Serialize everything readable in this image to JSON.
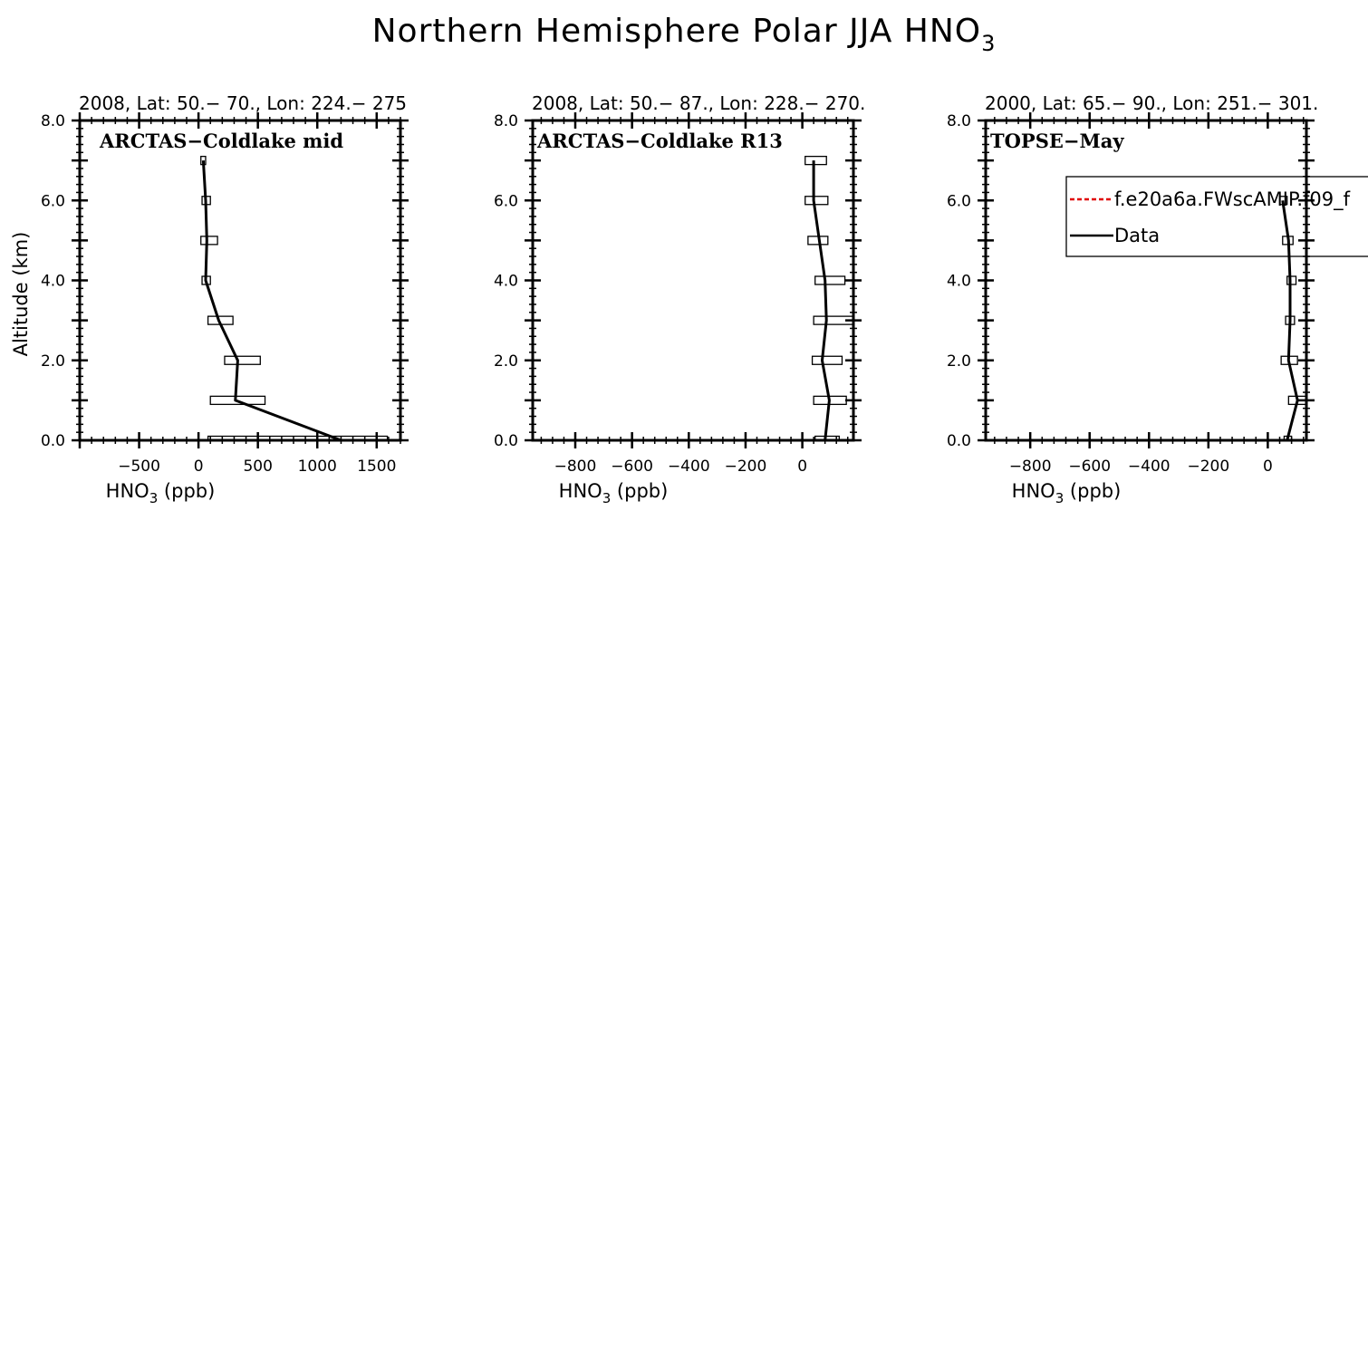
{
  "figure": {
    "title_main": "Northern Hemisphere Polar JJA HNO",
    "title_sub": "3"
  },
  "colors": {
    "model": "#e00000",
    "data": "#000000"
  },
  "chart_data": [
    {
      "type": "line",
      "panel_label": "ARCTAS−Coldlake mid",
      "header": "2008, Lat:  50.− 70., Lon: 224.− 275",
      "xlabel_main": "HNO",
      "xlabel_sub": "3",
      "xlabel_unit": " (ppb)",
      "ylabel": "Altitude (km)",
      "xlim": [
        -1000,
        1700
      ],
      "ylim": [
        0,
        8
      ],
      "xticks": [
        -500,
        0,
        500,
        1000,
        1500
      ],
      "xticklabels": [
        "−500",
        "0",
        "500",
        "1000",
        "1500"
      ],
      "yticks": [
        0,
        2,
        4,
        6,
        8
      ],
      "yticklabels": [
        "0.0",
        "2.0",
        "4.0",
        "6.0",
        "8.0"
      ],
      "series": [
        {
          "name": "Data",
          "y": [
            0,
            1,
            2,
            3,
            4,
            5,
            6,
            7
          ],
          "values": [
            1200,
            310,
            330,
            170,
            60,
            70,
            60,
            40
          ],
          "ranges": [
            [
              80,
              1590
            ],
            [
              100,
              560
            ],
            [
              220,
              520
            ],
            [
              80,
              290
            ],
            [
              30,
              100
            ],
            [
              20,
              160
            ],
            [
              30,
              100
            ],
            [
              20,
              60
            ]
          ]
        }
      ]
    },
    {
      "type": "line",
      "panel_label": "ARCTAS−Coldlake R13",
      "header": "2008, Lat:  50.− 87., Lon: 228.− 270.",
      "xlabel_main": "HNO",
      "xlabel_sub": "3",
      "xlabel_unit": " (ppb)",
      "ylabel": "",
      "xlim": [
        -950,
        180
      ],
      "ylim": [
        0,
        8
      ],
      "xticks": [
        -800,
        -600,
        -400,
        -200,
        0
      ],
      "xticklabels": [
        "−800",
        "−600",
        "−400",
        "−200",
        "0"
      ],
      "yticks": [
        0,
        2,
        4,
        6,
        8
      ],
      "yticklabels": [
        "0.0",
        "2.0",
        "4.0",
        "6.0",
        "8.0"
      ],
      "series": [
        {
          "name": "Data",
          "y": [
            0,
            1,
            2,
            3,
            4,
            5,
            6,
            7
          ],
          "values": [
            80,
            95,
            70,
            85,
            80,
            60,
            40,
            40
          ],
          "ranges": [
            [
              45,
              130
            ],
            [
              40,
              155
            ],
            [
              35,
              140
            ],
            [
              40,
              180
            ],
            [
              45,
              150
            ],
            [
              20,
              90
            ],
            [
              10,
              90
            ],
            [
              10,
              85
            ]
          ]
        }
      ]
    },
    {
      "type": "line",
      "panel_label": "TOPSE−May",
      "header": "2000, Lat: 65.− 90., Lon: 251.− 301.",
      "xlabel_main": "HNO",
      "xlabel_sub": "3",
      "xlabel_unit": " (ppb)",
      "ylabel": "",
      "xlim": [
        -950,
        130
      ],
      "ylim": [
        0,
        8
      ],
      "xticks": [
        -800,
        -600,
        -400,
        -200,
        0
      ],
      "xticklabels": [
        "−800",
        "−600",
        "−400",
        "−200",
        "0"
      ],
      "yticks": [
        0,
        2,
        4,
        6,
        8
      ],
      "yticklabels": [
        "0.0",
        "2.0",
        "4.0",
        "6.0",
        "8.0"
      ],
      "series": [
        {
          "name": "Data",
          "y": [
            0,
            1,
            2,
            3,
            4,
            5,
            6
          ],
          "values": [
            65,
            100,
            70,
            75,
            75,
            70,
            50
          ],
          "ranges": [
            [
              55,
              80
            ],
            [
              70,
              130
            ],
            [
              45,
              100
            ],
            [
              60,
              90
            ],
            [
              65,
              95
            ],
            [
              50,
              85
            ],
            [
              40,
              65
            ]
          ]
        }
      ],
      "legend": {
        "entries": [
          {
            "name": "f.e20a6a.FWscAMIP.f09_f",
            "style": "dashed",
            "color": "#e00000"
          },
          {
            "name": "Data",
            "style": "solid",
            "color": "#000000"
          }
        ]
      }
    }
  ]
}
